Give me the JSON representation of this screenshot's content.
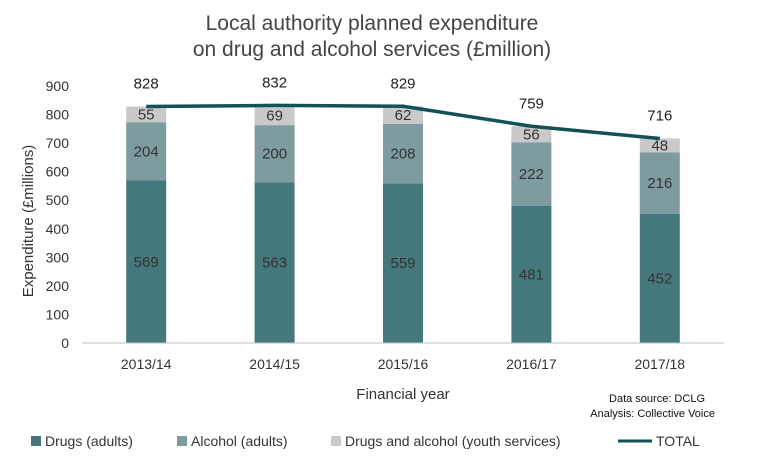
{
  "chart_data": {
    "type": "bar",
    "stacked": true,
    "title_lines": [
      "Local authority planned expenditure",
      "on drug and alcohol services (£million)"
    ],
    "xlabel": "Financial year",
    "ylabel": "Expenditure (£millions)",
    "ylim": [
      0,
      900
    ],
    "yticks": [
      "0",
      "100",
      "200",
      "300",
      "400",
      "500",
      "600",
      "700",
      "800",
      "900"
    ],
    "grid": false,
    "legend_position": "bottom",
    "categories": [
      "2013/14",
      "2014/15",
      "2015/16",
      "2016/17",
      "2017/18"
    ],
    "series": [
      {
        "name": "Drugs (adults)",
        "values": [
          569,
          563,
          559,
          481,
          452
        ],
        "color": "#45787d"
      },
      {
        "name": "Alcohol (adults)",
        "values": [
          204,
          200,
          208,
          222,
          216
        ],
        "color": "#7e9b9f"
      },
      {
        "name": "Drugs and alcohol (youth services)",
        "values": [
          55,
          69,
          62,
          56,
          48
        ],
        "color": "#c9c9c9"
      }
    ],
    "total": {
      "name": "TOTAL",
      "type": "line",
      "values": [
        828,
        832,
        829,
        759,
        716
      ],
      "color": "#125155"
    },
    "notes": [
      "Data source: DCLG",
      "Analysis: Collective Voice"
    ]
  }
}
